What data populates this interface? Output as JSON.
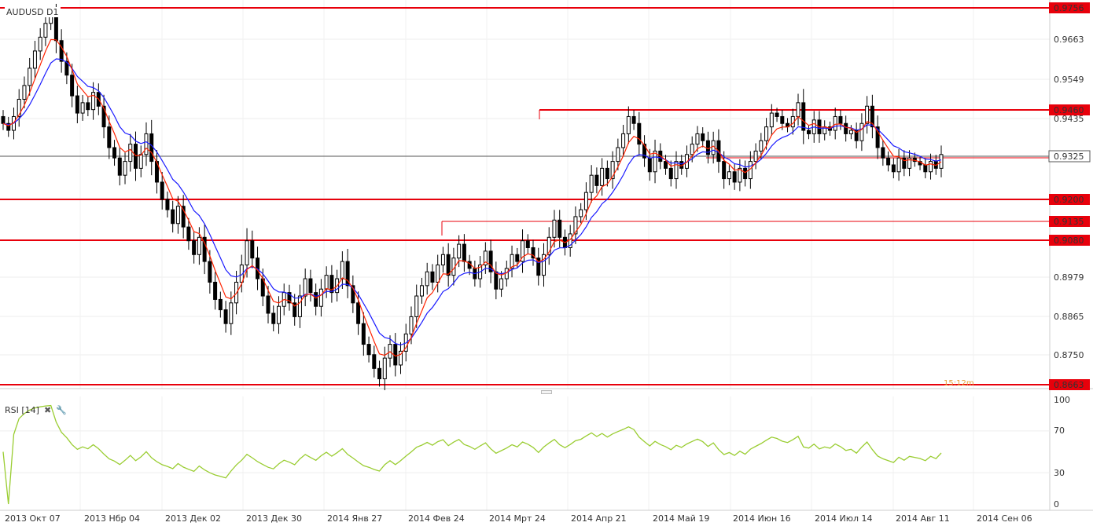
{
  "symbol": "AUDUSD D1",
  "timer": "15:12m",
  "current_price": "0.9325",
  "price_axis": {
    "labels": [
      "0.9663",
      "0.9549",
      "0.9435",
      "0.8979",
      "0.8865",
      "0.8750"
    ],
    "levels": [
      "0.9756",
      "0.9460",
      "0.9200",
      "0.9135",
      "0.9080",
      "0.8663"
    ]
  },
  "x_axis_labels": [
    "2013 Окт 07",
    "2013 Нбр 04",
    "2013 Дек 02",
    "2013 Дек 30",
    "2014 Янв 27",
    "2014 Фев 24",
    "2014 Мрт 24",
    "2014 Апр 21",
    "2014 Май 19",
    "2014 Июн 16",
    "2014 Июл 14",
    "2014 Авг 11",
    "2014 Сен 06"
  ],
  "rsi": {
    "label": "RSI [14]",
    "close_icon": "✖",
    "settings_icon": "🔧",
    "axis_labels": [
      "100",
      "70",
      "30",
      "0"
    ]
  },
  "colors": {
    "level_line": "#e8000b",
    "ma_fast": "#ff2200",
    "ma_slow": "#1a1aff",
    "rsi_line": "#9acd32",
    "candle": "#000000",
    "timer": "#e8a03a"
  },
  "chart_data": {
    "type": "candlestick",
    "instrument": "AUDUSD",
    "timeframe": "D1",
    "closes": [
      0.942,
      0.94,
      0.944,
      0.949,
      0.953,
      0.958,
      0.963,
      0.967,
      0.971,
      0.973,
      0.966,
      0.96,
      0.956,
      0.95,
      0.945,
      0.948,
      0.946,
      0.951,
      0.947,
      0.941,
      0.935,
      0.932,
      0.927,
      0.931,
      0.936,
      0.929,
      0.933,
      0.939,
      0.931,
      0.925,
      0.92,
      0.917,
      0.913,
      0.918,
      0.912,
      0.908,
      0.904,
      0.909,
      0.902,
      0.896,
      0.891,
      0.888,
      0.884,
      0.89,
      0.896,
      0.901,
      0.908,
      0.903,
      0.897,
      0.892,
      0.887,
      0.884,
      0.889,
      0.893,
      0.89,
      0.886,
      0.892,
      0.897,
      0.893,
      0.889,
      0.894,
      0.898,
      0.893,
      0.897,
      0.902,
      0.895,
      0.89,
      0.884,
      0.878,
      0.875,
      0.871,
      0.868,
      0.874,
      0.878,
      0.872,
      0.876,
      0.881,
      0.886,
      0.892,
      0.895,
      0.899,
      0.896,
      0.901,
      0.904,
      0.898,
      0.903,
      0.907,
      0.902,
      0.9,
      0.897,
      0.901,
      0.905,
      0.899,
      0.894,
      0.897,
      0.9,
      0.904,
      0.902,
      0.908,
      0.906,
      0.903,
      0.898,
      0.904,
      0.909,
      0.914,
      0.909,
      0.906,
      0.91,
      0.915,
      0.917,
      0.922,
      0.927,
      0.924,
      0.929,
      0.926,
      0.931,
      0.935,
      0.939,
      0.944,
      0.942,
      0.936,
      0.932,
      0.928,
      0.934,
      0.931,
      0.929,
      0.926,
      0.931,
      0.929,
      0.933,
      0.936,
      0.939,
      0.937,
      0.933,
      0.937,
      0.931,
      0.926,
      0.928,
      0.925,
      0.929,
      0.926,
      0.931,
      0.934,
      0.937,
      0.941,
      0.945,
      0.944,
      0.942,
      0.941,
      0.944,
      0.948,
      0.94,
      0.939,
      0.943,
      0.939,
      0.941,
      0.94,
      0.944,
      0.942,
      0.939,
      0.94,
      0.937,
      0.942,
      0.947,
      0.941,
      0.935,
      0.932,
      0.93,
      0.928,
      0.932,
      0.929,
      0.932,
      0.931,
      0.93,
      0.928,
      0.931,
      0.929,
      0.933
    ]
  }
}
